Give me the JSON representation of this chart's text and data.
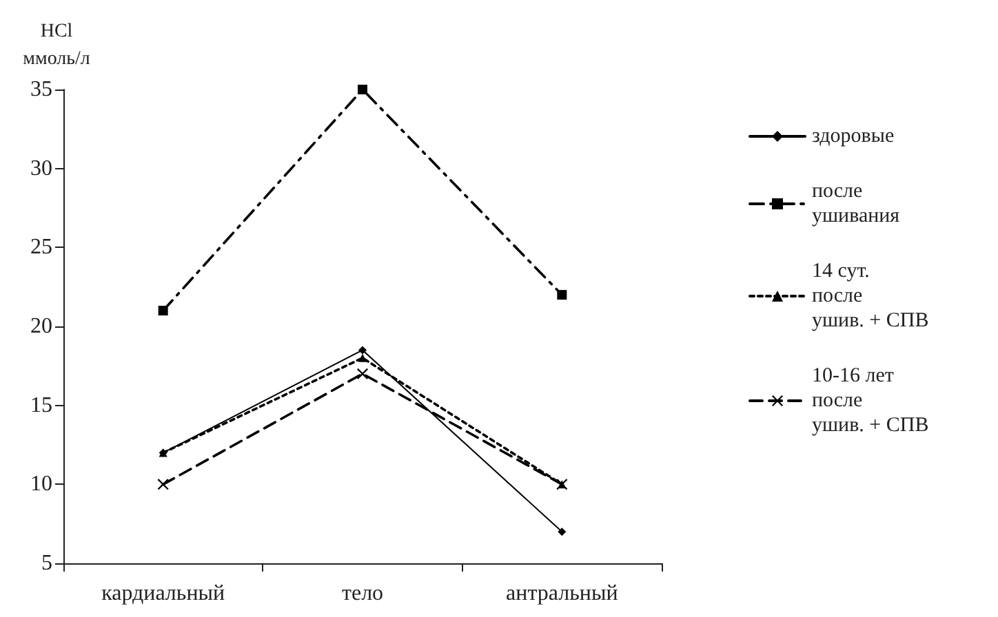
{
  "chart_data": {
    "type": "line",
    "ylabel": "HCl ммоль/л",
    "categories": [
      "кардиальный",
      "тело",
      "антральный"
    ],
    "ylim": [
      5,
      35
    ],
    "yticks": [
      5,
      10,
      15,
      20,
      25,
      30,
      35
    ],
    "grid": false,
    "legend": "right",
    "series": [
      {
        "name": "здоровые",
        "color": "#000000",
        "values": [
          12,
          18.5,
          7
        ],
        "marker": "diamond",
        "line_style": "solid"
      },
      {
        "name": "после ушивания",
        "color": "#000000",
        "values": [
          21,
          35,
          22
        ],
        "marker": "square",
        "line_style": "dashdot"
      },
      {
        "name": "14 сут. после ушив. + СПВ",
        "color": "#000000",
        "values": [
          12,
          18,
          10
        ],
        "marker": "triangle",
        "line_style": "dotted"
      },
      {
        "name": "10-16 лет после ушив. + СПВ",
        "color": "#000000",
        "values": [
          10,
          17,
          10
        ],
        "marker": "cross",
        "line_style": "dashed"
      }
    ]
  }
}
